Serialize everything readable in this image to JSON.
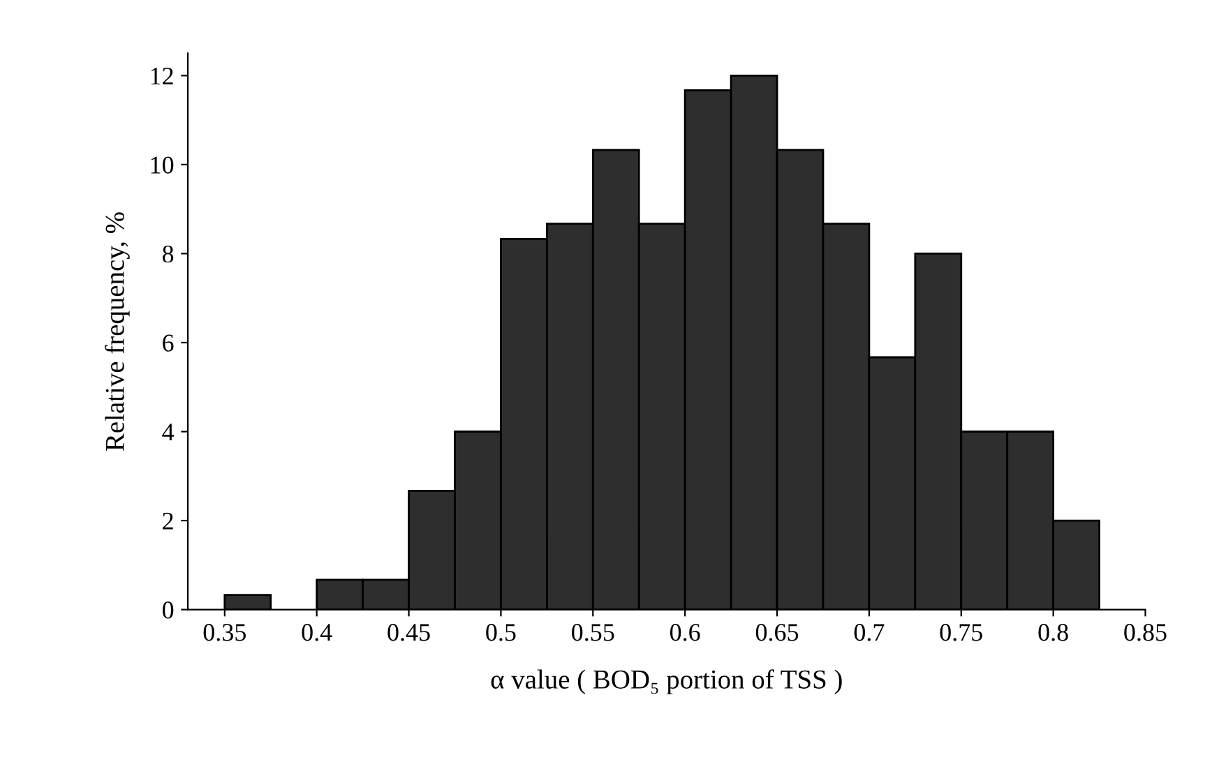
{
  "chart_data": {
    "type": "histogram",
    "xlabel": "α value ( BOD₅ portion of TSS )",
    "ylabel": "Relative frequency, %",
    "bins": [
      0.35,
      0.375,
      0.4,
      0.425,
      0.45,
      0.475,
      0.5,
      0.525,
      0.55,
      0.575,
      0.6,
      0.625,
      0.65,
      0.675,
      0.7,
      0.725,
      0.75,
      0.775,
      0.8,
      0.825
    ],
    "values": [
      0.33,
      0,
      0.67,
      0.67,
      2.67,
      4,
      8.33,
      8.67,
      10.33,
      8.67,
      11.67,
      12,
      10.33,
      8.67,
      5.67,
      8,
      4,
      4,
      2
    ],
    "color": "#2e2e2e",
    "xlim": [
      0.33,
      0.85
    ],
    "xticks": [
      0.35,
      0.4,
      0.45,
      0.5,
      0.55,
      0.6,
      0.65,
      0.7,
      0.75,
      0.8,
      0.85
    ],
    "ylim": [
      0,
      12.5
    ],
    "yticks": [
      0,
      2,
      4,
      6,
      8,
      10,
      12
    ],
    "grid": false
  }
}
